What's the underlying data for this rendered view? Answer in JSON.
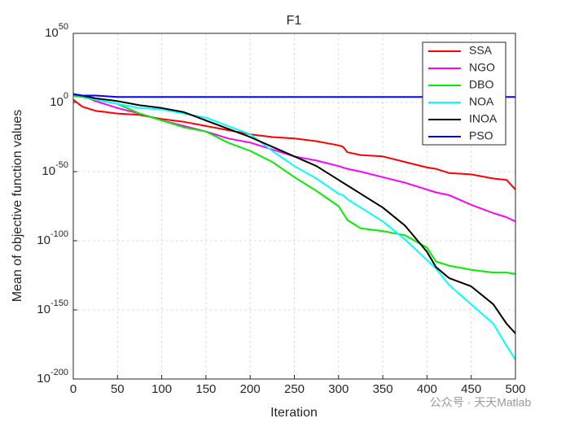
{
  "chart_data": {
    "type": "line",
    "title": "F1",
    "xlabel": "Iteration",
    "ylabel": "Mean of objective function values",
    "watermark": "公众号 · 天天Matlab",
    "x": [
      0,
      10,
      25,
      50,
      75,
      100,
      125,
      150,
      175,
      200,
      225,
      250,
      275,
      300,
      305,
      310,
      325,
      350,
      375,
      400,
      410,
      425,
      450,
      475,
      490,
      500
    ],
    "series": [
      {
        "name": "SSA",
        "color": "#ff0000",
        "values": [
          100.0,
          0.001,
          1e-06,
          1e-08,
          1e-09,
          1e-12,
          1e-14,
          1e-17,
          1e-20,
          1e-23,
          1e-25,
          1e-26,
          1e-28,
          1e-31,
          1e-32,
          1e-36,
          1e-38,
          1e-39,
          1e-43,
          1e-47,
          1e-48,
          1e-51,
          1e-52,
          1e-55,
          1e-56,
          1e-63
        ]
      },
      {
        "name": "NGO",
        "color": "#ff00ff",
        "values": [
          1000000.0,
          100000.0,
          10.0,
          0.0001,
          1e-08,
          1e-13,
          1e-17,
          1e-21,
          1e-26,
          1e-29,
          1e-34,
          1e-39,
          1e-42,
          1e-46,
          1e-47,
          1e-48,
          1e-50,
          1e-54,
          1e-58,
          1e-63,
          1e-65,
          1e-67,
          1e-74,
          1e-80,
          1e-83,
          1e-86
        ]
      },
      {
        "name": "DBO",
        "color": "#00ee00",
        "values": [
          100000.0,
          10000.0,
          100.0,
          0.1,
          1e-08,
          1e-13,
          1e-18,
          1e-21,
          1e-29,
          1e-35,
          1e-43,
          1e-54,
          1e-64,
          1e-75,
          1e-80,
          1e-85,
          1e-91,
          1e-93,
          1e-96,
          1e-105,
          1e-115,
          1e-118,
          1e-121,
          1e-123,
          1e-123,
          1e-124
        ]
      },
      {
        "name": "NOA",
        "color": "#00ffff",
        "values": [
          1000000.0,
          100000.0,
          100.0,
          0.1,
          0.0001,
          1e-05,
          1e-08,
          1e-11,
          1e-17,
          1e-23,
          1e-35,
          1e-46,
          1e-55,
          1e-66,
          1e-67,
          1e-70,
          1e-76,
          1e-86,
          1e-99,
          1e-114,
          1e-120,
          1e-132,
          1e-146,
          1e-160,
          1e-176,
          1e-186
        ]
      },
      {
        "name": "INOA",
        "color": "#000000",
        "values": [
          1000000.0,
          100000.0,
          1000.0,
          10.0,
          0.01,
          0.0001,
          1e-07,
          1e-13,
          1e-19,
          1e-25,
          1e-32,
          1e-39,
          1e-46,
          1e-56,
          1e-58,
          1e-60,
          1e-66,
          1e-76,
          1e-89,
          1e-108,
          1e-119,
          1e-127,
          1e-133,
          1e-146,
          1e-160,
          1e-167
        ]
      },
      {
        "name": "PSO",
        "color": "#0000ff",
        "values": [
          1000000.0,
          100000.0,
          100000.0,
          10000.0,
          10000.0,
          10000.0,
          10000.0,
          10000.0,
          10000.0,
          10000.0,
          10000.0,
          10000.0,
          10000.0,
          10000.0,
          10000.0,
          10000.0,
          10000.0,
          10000.0,
          10000.0,
          10000.0,
          10000.0,
          10000.0,
          10000.0,
          10000.0,
          10000.0,
          10000.0
        ]
      }
    ],
    "xlim": [
      0,
      500
    ],
    "xticks": [
      0,
      50,
      100,
      150,
      200,
      250,
      300,
      350,
      400,
      450,
      500
    ],
    "ylim": [
      1e-200,
      1e+50
    ],
    "log_y": true,
    "yticks": [
      {
        "value": 1e-200,
        "label": "10^-200"
      },
      {
        "value": 1e-150,
        "label": "10^-150"
      },
      {
        "value": 1e-100,
        "label": "10^-100"
      },
      {
        "value": 1e-50,
        "label": "10^-50"
      },
      {
        "value": 1,
        "label": "10^0"
      },
      {
        "value": 1e+50,
        "label": "10^50"
      }
    ],
    "grid": true,
    "legend": "northeast"
  }
}
